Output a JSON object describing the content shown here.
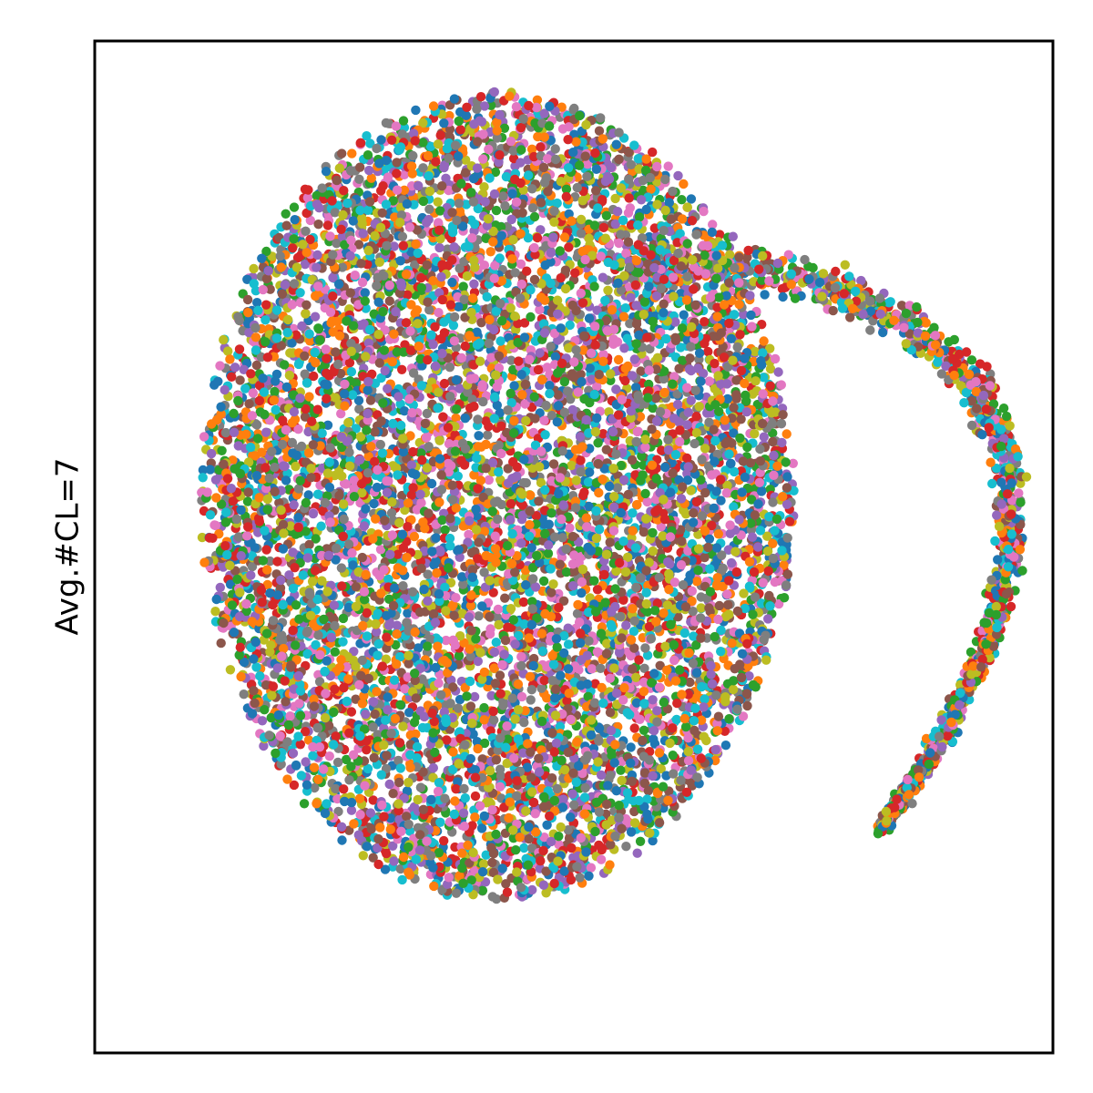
{
  "chart_data": {
    "type": "scatter",
    "title": "",
    "xlabel": "",
    "ylabel": "Avg.#CL=7",
    "xticks": [],
    "yticks": [],
    "grid": false,
    "legend": "none",
    "xlim": [
      0,
      1
    ],
    "ylim": [
      0,
      1
    ],
    "palette": [
      "#1f77b4",
      "#ff7f0e",
      "#2ca02c",
      "#d62728",
      "#9467bd",
      "#8c564b",
      "#e377c2",
      "#7f7f7f",
      "#bcbd22",
      "#17becf"
    ],
    "clusters": [
      {
        "shape": "blob",
        "center": [
          0.42,
          0.55
        ],
        "radius": [
          0.31,
          0.4
        ],
        "count": 9000,
        "seed": 7
      },
      {
        "shape": "arc",
        "count": 1400,
        "seed": 11,
        "path": [
          [
            0.55,
            0.78
          ],
          [
            0.66,
            0.78
          ],
          [
            0.76,
            0.76
          ],
          [
            0.85,
            0.72
          ],
          [
            0.92,
            0.66
          ],
          [
            0.955,
            0.58
          ],
          [
            0.955,
            0.49
          ],
          [
            0.93,
            0.4
          ],
          [
            0.89,
            0.32
          ],
          [
            0.85,
            0.26
          ],
          [
            0.82,
            0.22
          ]
        ],
        "width": [
          0.035,
          0.008
        ]
      }
    ]
  }
}
